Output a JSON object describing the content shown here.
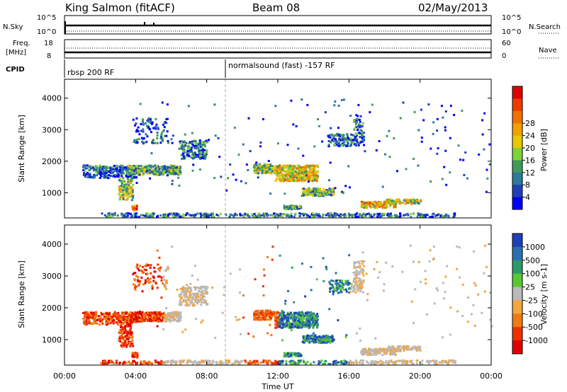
{
  "header": {
    "station": "King Salmon (fitACF)",
    "beam": "Beam 08",
    "date": "02/May/2013"
  },
  "status_panels": {
    "nsky_label": "N.Sky",
    "nsky_ticks": [
      "10^5",
      "10^0"
    ],
    "nsearch_label": "N.Search",
    "nsearch_ticks": [
      "10^5",
      "10^0"
    ],
    "freq_label_1": "Freq.",
    "freq_label_2": "[MHz]",
    "freq_ticks": [
      "18",
      "8"
    ],
    "nave_label": "Nave",
    "nave_ticks": [
      "60",
      "0"
    ],
    "cpid_label": "CPID",
    "cpid_segments": [
      {
        "label": "rbsp 200 RF",
        "start_hour": 0
      },
      {
        "label": "normalsound (fast) -157 RF",
        "start_hour": 9.5
      }
    ]
  },
  "chart_data": [
    {
      "type": "heatmap",
      "name": "power",
      "ylabel": "Slant Range [km]",
      "xlim_hours": [
        0,
        24
      ],
      "ylim": [
        200,
        4600
      ],
      "yticks": [
        "1000",
        "2000",
        "3000",
        "4000"
      ],
      "colorbar": {
        "label": "Power [dB]",
        "ticks": [
          "4",
          "8",
          "12",
          "16",
          "20",
          "24",
          "28"
        ],
        "colors": [
          "#0000ff",
          "#1f3fb8",
          "#2b7a9c",
          "#3f9b5a",
          "#7dd33a",
          "#e8c800",
          "#f0a000",
          "#f07000",
          "#ee3a00",
          "#e00000"
        ]
      }
    },
    {
      "type": "heatmap",
      "name": "velocity",
      "ylabel": "Slant Range [km]",
      "xlabel": "Time UT",
      "xlim_hours": [
        0,
        24
      ],
      "ylim": [
        200,
        4600
      ],
      "yticks": [
        "1000",
        "2000",
        "3000",
        "4000"
      ],
      "xticks": [
        "00:00",
        "04:00",
        "08:00",
        "12:00",
        "16:00",
        "20:00",
        "00:00"
      ],
      "colorbar": {
        "label": "Velocity [m s-1]",
        "ticks": [
          "1000",
          "500",
          "100",
          "25",
          "-25",
          "-100",
          "-500",
          "-1000"
        ],
        "colors": [
          "#1f3fb8",
          "#2b6fb0",
          "#2b9a6a",
          "#57c832",
          "#b9b9b9",
          "#f3a540",
          "#f07a10",
          "#ee3000",
          "#e00000"
        ]
      }
    }
  ]
}
